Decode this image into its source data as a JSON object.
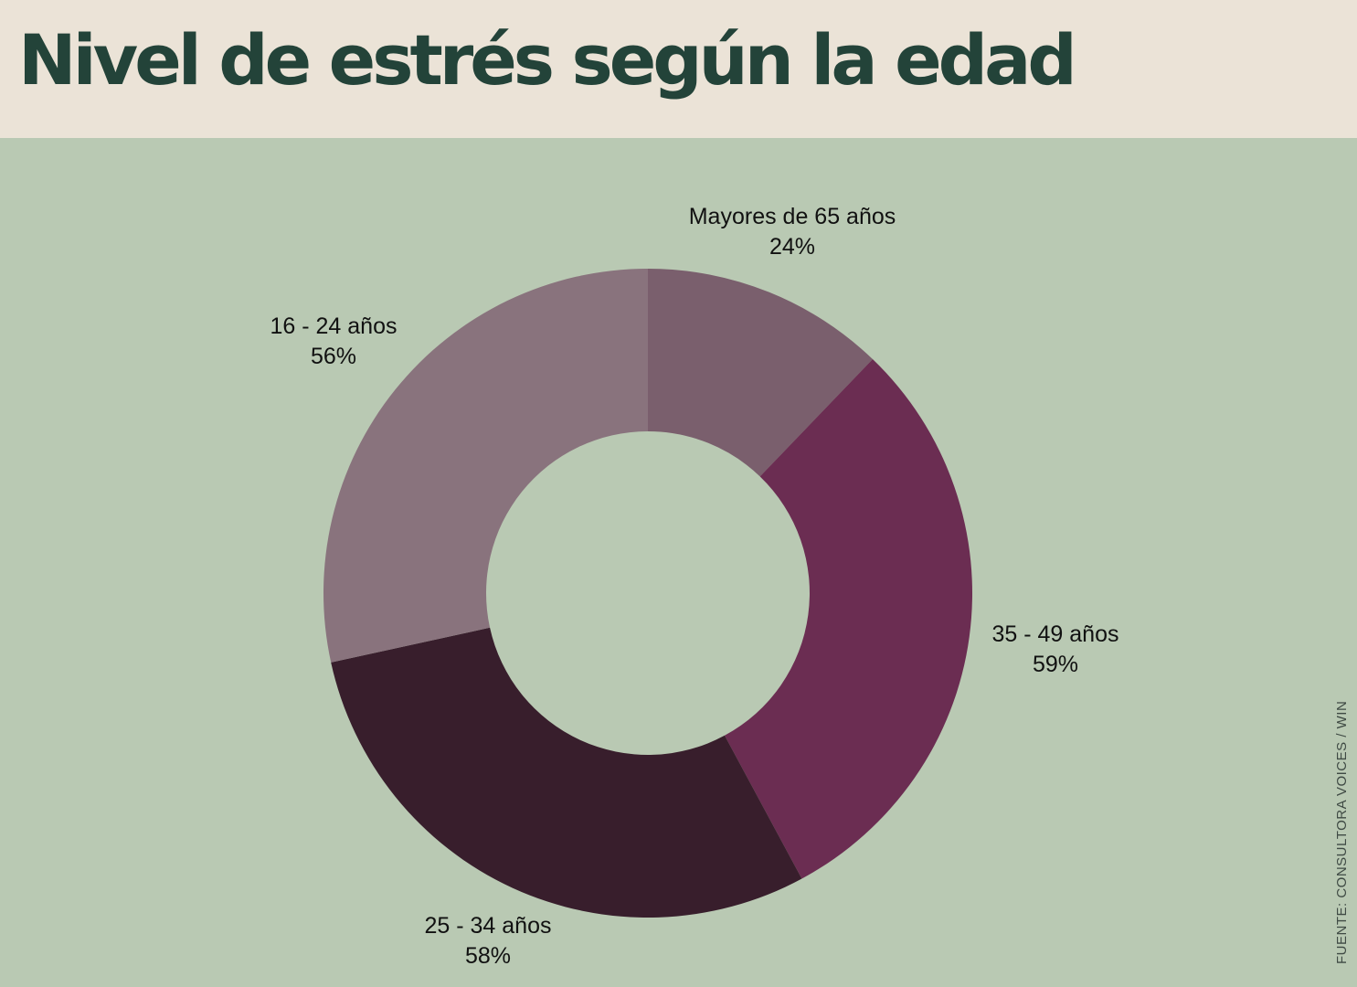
{
  "chart_data": {
    "type": "pie",
    "variant": "donut",
    "title": "Nivel de estrés según la edad",
    "categories": [
      "Mayores de 65 años",
      "35 - 49 años",
      "25 - 34 años",
      "16 - 24 años"
    ],
    "values": [
      24,
      59,
      58,
      56
    ],
    "value_labels": [
      "24%",
      "59%",
      "58%",
      "56%"
    ],
    "colors": [
      "#7a5f6d",
      "#6b2d52",
      "#381e2c",
      "#89737d"
    ],
    "start": "top",
    "direction": "clockwise",
    "source": "FUENTE: CONSULTORA VOICES / WIN"
  },
  "colors": {
    "background": "#b9c9b3",
    "header": "#ebe3d7",
    "title": "#234339"
  }
}
